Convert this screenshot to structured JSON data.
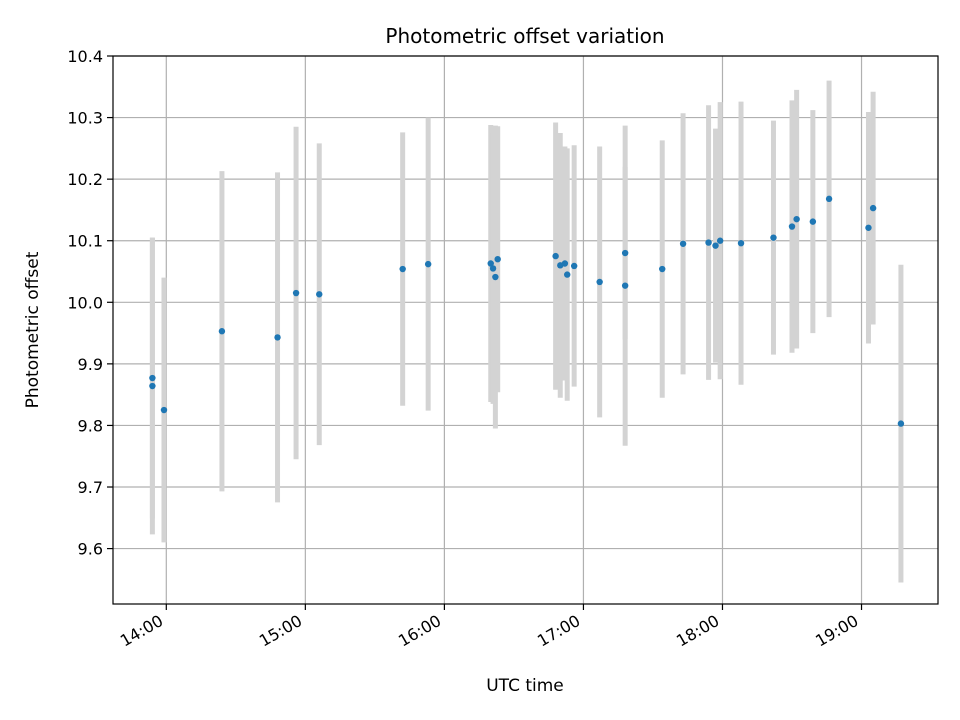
{
  "chart_data": {
    "type": "scatter",
    "title": "Photometric offset variation",
    "xlabel": "UTC time",
    "ylabel": "Photometric offset",
    "x_unit": "UTC time (hh:mm)",
    "xlim": [
      "13:37",
      "19:33"
    ],
    "ylim": [
      9.51,
      10.4
    ],
    "xticks": [
      "14:00",
      "15:00",
      "16:00",
      "17:00",
      "18:00",
      "19:00"
    ],
    "yticks": [
      "9.6",
      "9.7",
      "9.8",
      "9.9",
      "10.0",
      "10.1",
      "10.2",
      "10.3",
      "10.4"
    ],
    "grid": true,
    "point_color": "#1f77b4",
    "errorbar_color": "#d3d3d3",
    "series": [
      {
        "points": [
          {
            "t": "13:54",
            "y": 9.877,
            "err": 0.228
          },
          {
            "t": "13:54",
            "y": 9.864,
            "err": 0.241
          },
          {
            "t": "13:59",
            "y": 9.825,
            "err": 0.215
          },
          {
            "t": "14:24",
            "y": 9.953,
            "err": 0.26
          },
          {
            "t": "14:48",
            "y": 9.943,
            "err": 0.268
          },
          {
            "t": "14:56",
            "y": 10.015,
            "err": 0.27
          },
          {
            "t": "15:06",
            "y": 10.013,
            "err": 0.245
          },
          {
            "t": "15:42",
            "y": 10.054,
            "err": 0.222
          },
          {
            "t": "15:53",
            "y": 10.062,
            "err": 0.238
          },
          {
            "t": "16:20",
            "y": 10.063,
            "err": 0.225
          },
          {
            "t": "16:21",
            "y": 10.055,
            "err": 0.22
          },
          {
            "t": "16:22",
            "y": 10.041,
            "err": 0.246
          },
          {
            "t": "16:23",
            "y": 10.07,
            "err": 0.216
          },
          {
            "t": "16:48",
            "y": 10.075,
            "err": 0.217
          },
          {
            "t": "16:50",
            "y": 10.06,
            "err": 0.215
          },
          {
            "t": "16:52",
            "y": 10.063,
            "err": 0.19
          },
          {
            "t": "16:53",
            "y": 10.045,
            "err": 0.205
          },
          {
            "t": "16:56",
            "y": 10.059,
            "err": 0.196
          },
          {
            "t": "17:07",
            "y": 10.033,
            "err": 0.22
          },
          {
            "t": "17:18",
            "y": 10.027,
            "err": 0.26
          },
          {
            "t": "17:18",
            "y": 10.08,
            "err": 0.14
          },
          {
            "t": "17:34",
            "y": 10.054,
            "err": 0.209
          },
          {
            "t": "17:43",
            "y": 10.095,
            "err": 0.212
          },
          {
            "t": "17:54",
            "y": 10.097,
            "err": 0.223
          },
          {
            "t": "17:57",
            "y": 10.092,
            "err": 0.19
          },
          {
            "t": "17:59",
            "y": 10.1,
            "err": 0.225
          },
          {
            "t": "18:08",
            "y": 10.096,
            "err": 0.23
          },
          {
            "t": "18:22",
            "y": 10.105,
            "err": 0.19
          },
          {
            "t": "18:30",
            "y": 10.123,
            "err": 0.205
          },
          {
            "t": "18:32",
            "y": 10.135,
            "err": 0.21
          },
          {
            "t": "18:39",
            "y": 10.131,
            "err": 0.181
          },
          {
            "t": "18:46",
            "y": 10.168,
            "err": 0.192
          },
          {
            "t": "19:03",
            "y": 10.121,
            "err": 0.188
          },
          {
            "t": "19:05",
            "y": 10.153,
            "err": 0.189
          },
          {
            "t": "19:17",
            "y": 9.803,
            "err": 0.258
          }
        ]
      }
    ]
  }
}
